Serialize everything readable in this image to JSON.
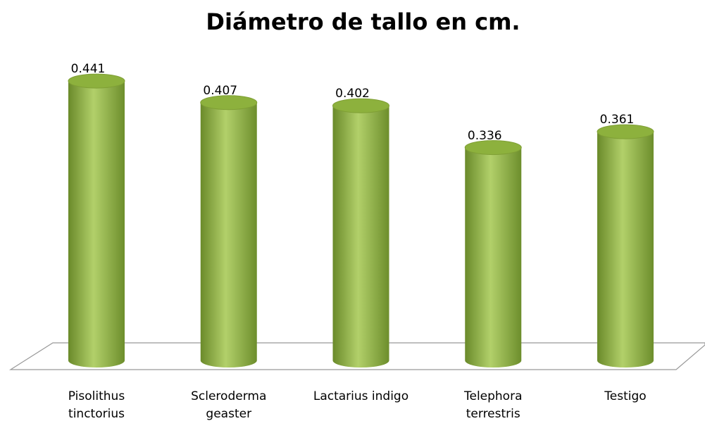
{
  "chart_data": {
    "type": "bar",
    "title": "Diámetro de tallo en cm.",
    "categories": [
      "Pisolithus tinctorius",
      "Scleroderma geaster",
      "Lactarius indigo",
      "Telephora terrestris",
      "Testigo"
    ],
    "values": [
      0.441,
      0.407,
      0.402,
      0.336,
      0.361
    ],
    "color": "#8db13d"
  }
}
